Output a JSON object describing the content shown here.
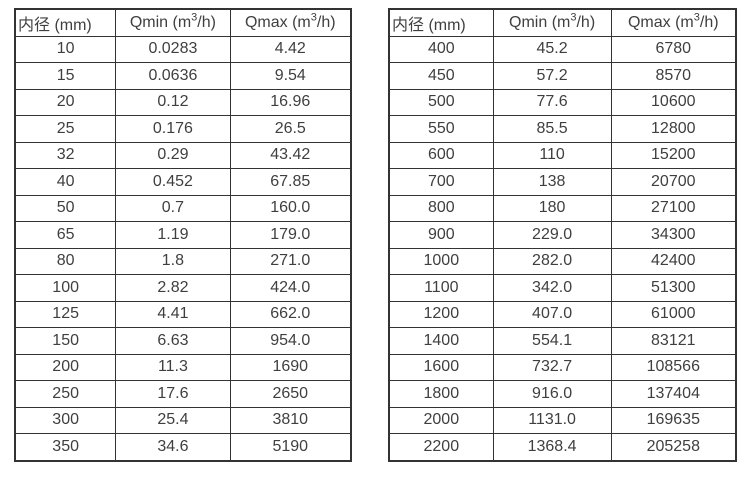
{
  "colors": {
    "border": "#333333",
    "text": "#3f3f3f",
    "background": "#ffffff"
  },
  "table_left": {
    "headers": [
      "内径 (mm)",
      "Qmin (m³/h)",
      "Qmax (m³/h)"
    ],
    "rows": [
      [
        "10",
        "0.0283",
        "4.42"
      ],
      [
        "15",
        "0.0636",
        "9.54"
      ],
      [
        "20",
        "0.12",
        "16.96"
      ],
      [
        "25",
        "0.176",
        "26.5"
      ],
      [
        "32",
        "0.29",
        "43.42"
      ],
      [
        "40",
        "0.452",
        "67.85"
      ],
      [
        "50",
        "0.7",
        "160.0"
      ],
      [
        "65",
        "1.19",
        "179.0"
      ],
      [
        "80",
        "1.8",
        "271.0"
      ],
      [
        "100",
        "2.82",
        "424.0"
      ],
      [
        "125",
        "4.41",
        "662.0"
      ],
      [
        "150",
        "6.63",
        "954.0"
      ],
      [
        "200",
        "11.3",
        "1690"
      ],
      [
        "250",
        "17.6",
        "2650"
      ],
      [
        "300",
        "25.4",
        "3810"
      ],
      [
        "350",
        "34.6",
        "5190"
      ]
    ]
  },
  "table_right": {
    "headers": [
      "内径 (mm)",
      "Qmin (m³/h)",
      "Qmax (m³/h)"
    ],
    "rows": [
      [
        "400",
        "45.2",
        "6780"
      ],
      [
        "450",
        "57.2",
        "8570"
      ],
      [
        "500",
        "77.6",
        "10600"
      ],
      [
        "550",
        "85.5",
        "12800"
      ],
      [
        "600",
        "110",
        "15200"
      ],
      [
        "700",
        "138",
        "20700"
      ],
      [
        "800",
        "180",
        "27100"
      ],
      [
        "900",
        "229.0",
        "34300"
      ],
      [
        "1000",
        "282.0",
        "42400"
      ],
      [
        "1100",
        "342.0",
        "51300"
      ],
      [
        "1200",
        "407.0",
        "61000"
      ],
      [
        "1400",
        "554.1",
        "83121"
      ],
      [
        "1600",
        "732.7",
        "108566"
      ],
      [
        "1800",
        "916.0",
        "137404"
      ],
      [
        "2000",
        "1131.0",
        "169635"
      ],
      [
        "2200",
        "1368.4",
        "205258"
      ]
    ]
  }
}
